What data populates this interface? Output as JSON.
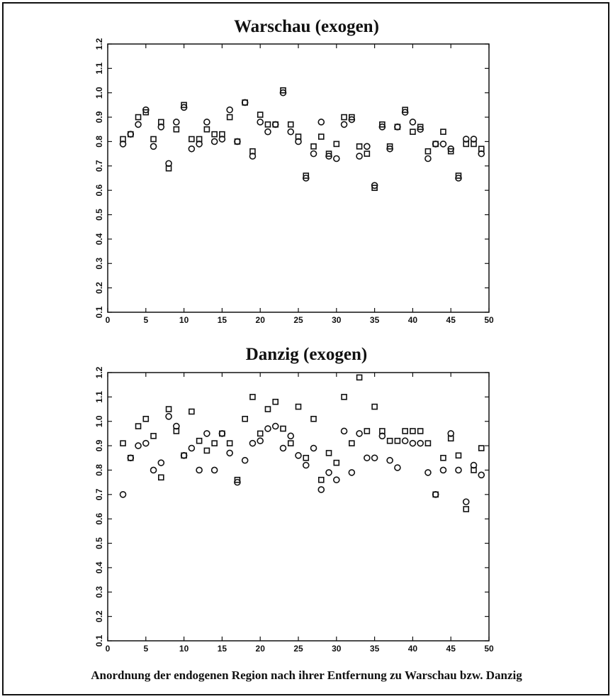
{
  "caption": "Anordnung der endogenen Region nach ihrer Entfernung zu Warschau bzw. Danzig",
  "chart_data": [
    {
      "type": "scatter",
      "title": "Warschau (exogen)",
      "xlim": [
        0,
        50
      ],
      "ylim": [
        0.1,
        1.2
      ],
      "x_ticks": [
        "0",
        "5",
        "10",
        "15",
        "20",
        "25",
        "30",
        "35",
        "40",
        "45",
        "50"
      ],
      "y_ticks": [
        "0.1",
        "0.2",
        "0.3",
        "0.4",
        "0.5",
        "0.6",
        "0.7",
        "0.8",
        "0.9",
        "1.0",
        "1.1",
        "1.2"
      ],
      "series": [
        {
          "marker": "square",
          "x": [
            2,
            3,
            4,
            5,
            6,
            7,
            8,
            9,
            10,
            11,
            12,
            13,
            14,
            15,
            16,
            17,
            18,
            19,
            20,
            21,
            22,
            23,
            24,
            25,
            26,
            27,
            28,
            29,
            30,
            31,
            32,
            33,
            34,
            35,
            36,
            37,
            38,
            39,
            40,
            41,
            42,
            43,
            44,
            45,
            46,
            47,
            48,
            49
          ],
          "y": [
            0.81,
            0.83,
            0.9,
            0.92,
            0.81,
            0.88,
            0.69,
            0.85,
            0.95,
            0.81,
            0.81,
            0.85,
            0.83,
            0.83,
            0.9,
            0.8,
            0.96,
            0.76,
            0.91,
            0.87,
            0.87,
            1.01,
            0.87,
            0.82,
            0.66,
            0.78,
            0.82,
            0.75,
            0.79,
            0.9,
            0.9,
            0.78,
            0.75,
            0.61,
            0.87,
            0.78,
            0.86,
            0.93,
            0.84,
            0.86,
            0.76,
            0.79,
            0.84,
            0.76,
            0.66,
            0.79,
            0.79,
            0.77
          ]
        },
        {
          "marker": "circle",
          "x": [
            2,
            3,
            4,
            5,
            6,
            7,
            8,
            9,
            10,
            11,
            12,
            13,
            14,
            15,
            16,
            17,
            18,
            19,
            20,
            21,
            22,
            23,
            24,
            25,
            26,
            27,
            28,
            29,
            30,
            31,
            32,
            33,
            34,
            35,
            36,
            37,
            38,
            39,
            40,
            41,
            42,
            43,
            44,
            45,
            46,
            47,
            48,
            49
          ],
          "y": [
            0.79,
            0.83,
            0.87,
            0.93,
            0.78,
            0.86,
            0.71,
            0.88,
            0.94,
            0.77,
            0.79,
            0.88,
            0.8,
            0.81,
            0.93,
            0.8,
            0.96,
            0.74,
            0.88,
            0.84,
            0.87,
            1.0,
            0.84,
            0.8,
            0.65,
            0.75,
            0.88,
            0.74,
            0.73,
            0.87,
            0.89,
            0.74,
            0.78,
            0.62,
            0.86,
            0.77,
            0.86,
            0.92,
            0.88,
            0.85,
            0.73,
            0.79,
            0.79,
            0.77,
            0.65,
            0.81,
            0.81,
            0.75
          ]
        }
      ]
    },
    {
      "type": "scatter",
      "title": "Danzig (exogen)",
      "xlim": [
        0,
        50
      ],
      "ylim": [
        0.1,
        1.2
      ],
      "x_ticks": [
        "0",
        "5",
        "10",
        "15",
        "20",
        "25",
        "30",
        "35",
        "40",
        "45",
        "50"
      ],
      "y_ticks": [
        "0.1",
        "0.2",
        "0.3",
        "0.4",
        "0.5",
        "0.6",
        "0.7",
        "0.8",
        "0.9",
        "1.0",
        "1.1",
        "1.2"
      ],
      "series": [
        {
          "marker": "square",
          "x": [
            2,
            3,
            4,
            5,
            6,
            7,
            8,
            9,
            10,
            11,
            12,
            13,
            14,
            15,
            16,
            17,
            18,
            19,
            20,
            21,
            22,
            23,
            24,
            25,
            26,
            27,
            28,
            29,
            30,
            31,
            32,
            33,
            34,
            35,
            36,
            37,
            38,
            39,
            40,
            41,
            42,
            43,
            44,
            45,
            46,
            47,
            48,
            49
          ],
          "y": [
            0.91,
            0.85,
            0.98,
            1.01,
            0.94,
            0.77,
            1.05,
            0.96,
            0.86,
            1.04,
            0.92,
            0.88,
            0.91,
            0.95,
            0.91,
            0.76,
            1.01,
            1.1,
            0.95,
            1.05,
            1.08,
            0.97,
            0.91,
            1.06,
            0.85,
            1.01,
            0.76,
            0.87,
            0.83,
            1.1,
            0.91,
            1.18,
            0.96,
            1.06,
            0.96,
            0.92,
            0.92,
            0.96,
            0.96,
            0.96,
            0.91,
            0.7,
            0.85,
            0.93,
            0.86,
            0.64,
            0.8,
            0.89
          ]
        },
        {
          "marker": "circle",
          "x": [
            2,
            3,
            4,
            5,
            6,
            7,
            8,
            9,
            10,
            11,
            12,
            13,
            14,
            15,
            16,
            17,
            18,
            19,
            20,
            21,
            22,
            23,
            24,
            25,
            26,
            27,
            28,
            29,
            30,
            31,
            32,
            33,
            34,
            35,
            36,
            37,
            38,
            39,
            40,
            41,
            42,
            43,
            44,
            45,
            46,
            47,
            48,
            49
          ],
          "y": [
            0.7,
            0.85,
            0.9,
            0.91,
            0.8,
            0.83,
            1.02,
            0.98,
            0.86,
            0.89,
            0.8,
            0.95,
            0.8,
            0.95,
            0.87,
            0.75,
            0.84,
            0.91,
            0.92,
            0.97,
            0.98,
            0.89,
            0.94,
            0.86,
            0.82,
            0.89,
            0.72,
            0.79,
            0.76,
            0.96,
            0.79,
            0.95,
            0.85,
            0.85,
            0.94,
            0.84,
            0.81,
            0.92,
            0.91,
            0.91,
            0.79,
            0.7,
            0.8,
            0.95,
            0.8,
            0.67,
            0.82,
            0.78
          ]
        }
      ]
    }
  ]
}
